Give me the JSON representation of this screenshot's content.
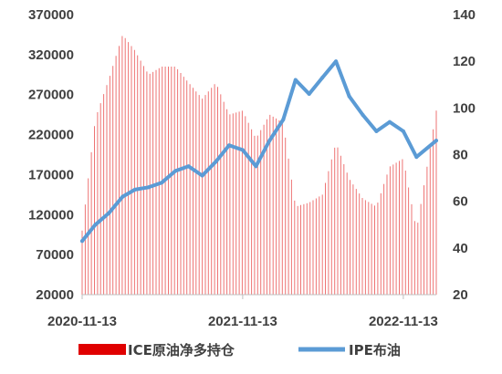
{
  "chart_data": {
    "type": "bar+line",
    "title": "",
    "x_tick_labels": [
      "2020-11-13",
      "2021-11-13",
      "2022-11-13"
    ],
    "x_range": [
      "2020-11-13",
      "2023-01-27"
    ],
    "left_axis": {
      "min": 20000,
      "max": 370000,
      "ticks": [
        20000,
        70000,
        120000,
        170000,
        220000,
        270000,
        320000,
        370000
      ]
    },
    "right_axis": {
      "min": 20,
      "max": 140,
      "ticks": [
        20,
        40,
        60,
        80,
        100,
        120,
        140
      ]
    },
    "grid": false,
    "legend_position": "bottom",
    "series": [
      {
        "name": "ICE原油净多持仓",
        "type": "bar",
        "axis": "left",
        "color": "#e00000",
        "points": [
          [
            "2020-11-13",
            100000
          ],
          [
            "2020-12-13",
            240000
          ],
          [
            "2021-01-13",
            290000
          ],
          [
            "2021-02-13",
            345000
          ],
          [
            "2021-03-13",
            325000
          ],
          [
            "2021-04-13",
            295000
          ],
          [
            "2021-05-13",
            305000
          ],
          [
            "2021-06-13",
            305000
          ],
          [
            "2021-07-13",
            285000
          ],
          [
            "2021-08-13",
            265000
          ],
          [
            "2021-09-13",
            285000
          ],
          [
            "2021-10-13",
            245000
          ],
          [
            "2021-11-13",
            250000
          ],
          [
            "2021-12-13",
            215000
          ],
          [
            "2022-01-13",
            245000
          ],
          [
            "2022-02-13",
            235000
          ],
          [
            "2022-03-13",
            130000
          ],
          [
            "2022-04-13",
            135000
          ],
          [
            "2022-05-13",
            145000
          ],
          [
            "2022-06-13",
            210000
          ],
          [
            "2022-07-13",
            165000
          ],
          [
            "2022-08-13",
            140000
          ],
          [
            "2022-09-13",
            130000
          ],
          [
            "2022-10-13",
            180000
          ],
          [
            "2022-11-13",
            190000
          ],
          [
            "2022-12-13",
            100000
          ],
          [
            "2023-01-27",
            250000
          ]
        ]
      },
      {
        "name": "IPE布油",
        "type": "line",
        "axis": "right",
        "color": "#5b9bd5",
        "points": [
          [
            "2020-11-13",
            43
          ],
          [
            "2020-12-13",
            50
          ],
          [
            "2021-01-13",
            55
          ],
          [
            "2021-02-13",
            62
          ],
          [
            "2021-03-13",
            65
          ],
          [
            "2021-04-13",
            66
          ],
          [
            "2021-05-13",
            68
          ],
          [
            "2021-06-13",
            73
          ],
          [
            "2021-07-13",
            75
          ],
          [
            "2021-08-13",
            71
          ],
          [
            "2021-09-13",
            77
          ],
          [
            "2021-10-13",
            84
          ],
          [
            "2021-11-13",
            82
          ],
          [
            "2021-12-13",
            75
          ],
          [
            "2022-01-13",
            86
          ],
          [
            "2022-02-13",
            95
          ],
          [
            "2022-03-13",
            112
          ],
          [
            "2022-04-13",
            106
          ],
          [
            "2022-05-13",
            113
          ],
          [
            "2022-06-13",
            120
          ],
          [
            "2022-07-13",
            105
          ],
          [
            "2022-08-13",
            97
          ],
          [
            "2022-09-13",
            90
          ],
          [
            "2022-10-13",
            94
          ],
          [
            "2022-11-13",
            90
          ],
          [
            "2022-12-13",
            79
          ],
          [
            "2023-01-27",
            86
          ]
        ]
      }
    ]
  }
}
